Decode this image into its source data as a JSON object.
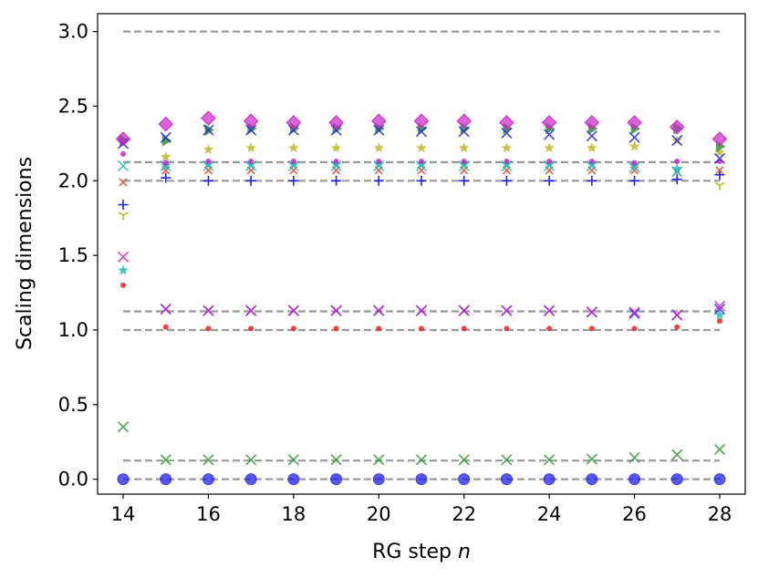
{
  "chart_data": {
    "type": "scatter",
    "title": "",
    "xlabel": "RG step",
    "xlabel_var": "n",
    "ylabel": "Scaling dimensions",
    "xlim": [
      13.4,
      28.6
    ],
    "ylim": [
      -0.1,
      3.12
    ],
    "xticks": [
      14,
      16,
      18,
      20,
      22,
      24,
      26,
      28
    ],
    "yticks": [
      "0.0",
      "0.5",
      "1.0",
      "1.5",
      "2.0",
      "2.5",
      "3.0"
    ],
    "yticks_values": [
      0,
      0.5,
      1.0,
      1.5,
      2.0,
      2.5,
      3.0
    ],
    "grid": false,
    "legend": "none",
    "x": [
      14,
      15,
      16,
      17,
      18,
      19,
      20,
      21,
      22,
      23,
      24,
      25,
      26,
      27,
      28
    ],
    "reference_lines": [
      0,
      0.125,
      1.0,
      1.125,
      2.0,
      2.125,
      3.0
    ],
    "series": [
      {
        "marker": "circle-large",
        "color": "#2222ee",
        "values": [
          0,
          0,
          0,
          0,
          0,
          0,
          0,
          0,
          0,
          0,
          0,
          0,
          0,
          0,
          0
        ]
      },
      {
        "marker": "x",
        "color": "#2a9a2a",
        "values": [
          0.35,
          0.13,
          0.13,
          0.13,
          0.13,
          0.13,
          0.13,
          0.13,
          0.13,
          0.13,
          0.13,
          0.135,
          0.145,
          0.165,
          0.2
        ]
      },
      {
        "marker": "dot",
        "color": "#ee2222",
        "values": [
          1.3,
          1.02,
          1.01,
          1.01,
          1.01,
          1.01,
          1.01,
          1.01,
          1.01,
          1.01,
          1.01,
          1.01,
          1.01,
          1.02,
          1.06
        ]
      },
      {
        "marker": "x",
        "color": "#2222ee",
        "values": [
          null,
          1.14,
          1.13,
          1.13,
          1.13,
          1.13,
          1.13,
          1.13,
          1.13,
          1.13,
          1.13,
          1.12,
          1.11,
          1.1,
          1.14
        ]
      },
      {
        "marker": "x",
        "color": "#cc22cc",
        "values": [
          1.49,
          1.14,
          1.13,
          1.13,
          1.13,
          1.13,
          1.13,
          1.13,
          1.13,
          1.13,
          1.13,
          1.12,
          1.12,
          1.1,
          1.16
        ]
      },
      {
        "marker": "star",
        "color": "#22bbbb",
        "values": [
          1.4,
          null,
          null,
          null,
          null,
          null,
          null,
          null,
          null,
          null,
          null,
          null,
          null,
          null,
          1.1
        ]
      },
      {
        "marker": "plus",
        "color": "#2222ee",
        "values": [
          1.84,
          2.02,
          2.0,
          2.0,
          2.0,
          2.0,
          2.0,
          2.0,
          2.0,
          2.0,
          2.0,
          2.0,
          2.0,
          2.01,
          2.04
        ]
      },
      {
        "marker": "tri-down",
        "color": "#bbbb22",
        "values": [
          1.77,
          null,
          null,
          null,
          null,
          null,
          null,
          null,
          null,
          null,
          null,
          null,
          null,
          null,
          1.97
        ]
      },
      {
        "marker": "x-small",
        "color": "#dd4422",
        "values": [
          1.99,
          2.07,
          2.07,
          2.07,
          2.07,
          2.07,
          2.07,
          2.07,
          2.07,
          2.07,
          2.07,
          2.07,
          2.07,
          2.06,
          2.07
        ]
      },
      {
        "marker": "star",
        "color": "#22bbbb",
        "values": [
          null,
          2.1,
          2.11,
          2.11,
          2.11,
          2.11,
          2.11,
          2.11,
          2.11,
          2.11,
          2.11,
          2.11,
          2.1,
          2.08,
          null
        ]
      },
      {
        "marker": "x",
        "color": "#22bbbb",
        "values": [
          2.1,
          2.1,
          2.1,
          2.1,
          2.1,
          2.1,
          2.1,
          2.1,
          2.1,
          2.1,
          2.1,
          2.1,
          2.09,
          2.06,
          null
        ]
      },
      {
        "marker": "dot",
        "color": "#cc22cc",
        "values": [
          2.18,
          2.12,
          2.13,
          2.13,
          2.13,
          2.13,
          2.13,
          2.13,
          2.13,
          2.13,
          2.13,
          2.13,
          2.12,
          2.13,
          2.13
        ]
      },
      {
        "marker": "star",
        "color": "#bbbb22",
        "values": [
          null,
          2.16,
          2.21,
          2.22,
          2.22,
          2.22,
          2.22,
          2.22,
          2.22,
          2.22,
          2.22,
          2.22,
          2.23,
          2.27,
          2.19
        ]
      },
      {
        "marker": "triangle-right",
        "color": "#2a9a2a",
        "values": [
          2.27,
          2.27,
          2.34,
          2.35,
          2.35,
          2.35,
          2.35,
          2.35,
          2.35,
          2.35,
          2.35,
          2.35,
          2.35,
          2.35,
          2.23
        ]
      },
      {
        "marker": "x",
        "color": "#2222ee",
        "values": [
          2.25,
          2.29,
          2.34,
          2.34,
          2.34,
          2.34,
          2.34,
          2.33,
          2.33,
          2.32,
          2.31,
          2.3,
          2.29,
          2.27,
          2.15
        ]
      },
      {
        "marker": "diamond",
        "color": "#cc22cc",
        "values": [
          2.28,
          2.38,
          2.42,
          2.4,
          2.39,
          2.39,
          2.4,
          2.4,
          2.4,
          2.39,
          2.39,
          2.39,
          2.39,
          2.36,
          2.28
        ]
      }
    ]
  }
}
